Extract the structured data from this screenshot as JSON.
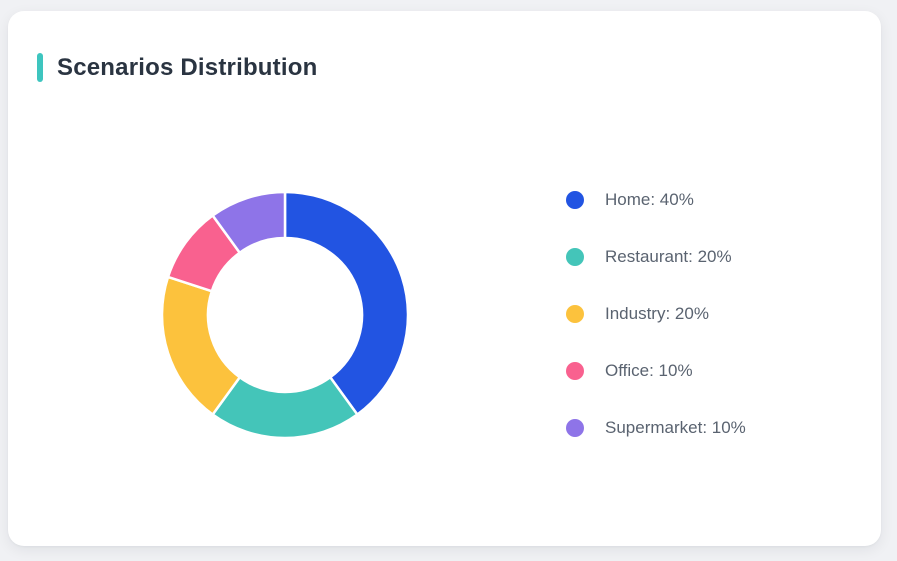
{
  "header": {
    "title": "Scenarios Distribution"
  },
  "theme": {
    "accent": "#3EC5BF",
    "title_color": "#2A3441",
    "legend_text_color": "#5A6370",
    "card_bg": "#FFFFFF",
    "page_bg": "#F0F1F4",
    "separator_color": "#FFFFFF"
  },
  "chart_data": {
    "type": "pie",
    "subtype": "donut",
    "title": "Scenarios Distribution",
    "labels": [
      "Home",
      "Restaurant",
      "Industry",
      "Office",
      "Supermarket"
    ],
    "values": [
      40,
      20,
      20,
      10,
      10
    ],
    "unit": "%",
    "segment_colors": [
      "#2254E2",
      "#44C5B9",
      "#FCC23D",
      "#F9618F",
      "#8E74E8"
    ],
    "legend_entries": [
      "Home: 40%",
      "Restaurant: 20%",
      "Industry: 20%",
      "Office: 10%",
      "Supermarket: 10%"
    ],
    "start_angle_deg": 0,
    "direction": "clockwise",
    "inner_radius_ratio": 0.63,
    "legend_position": "right",
    "data_labels_visible": false
  }
}
